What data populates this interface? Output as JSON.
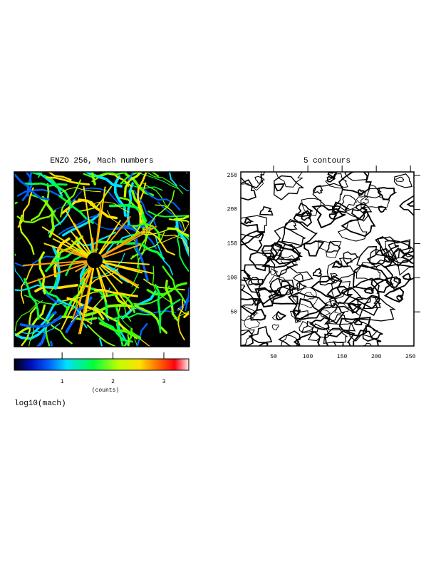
{
  "chart_data": [
    {
      "type": "heatmap",
      "title": "ENZO 256, Mach numbers",
      "colorbar": {
        "label": "(counts)",
        "lim": [
          0.06,
          3.49
        ],
        "ticks": [
          1,
          2,
          3
        ]
      },
      "caption": "log10(mach)"
    },
    {
      "type": "contour",
      "title": "5 contours",
      "xlim": [
        2,
        255
      ],
      "ylim": [
        0,
        255
      ],
      "xticks": [
        50,
        100,
        150,
        200,
        250
      ],
      "yticks": [
        50,
        100,
        150,
        200,
        250
      ]
    }
  ]
}
